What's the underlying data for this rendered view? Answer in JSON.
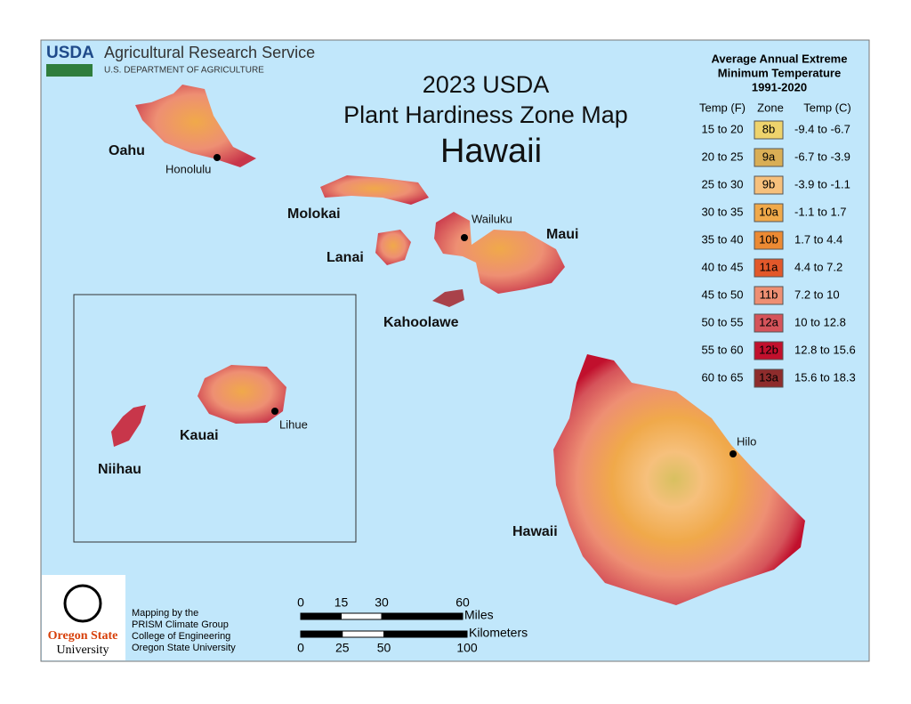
{
  "header": {
    "logo": "USDA",
    "agency": "Agricultural Research Service",
    "department": "U.S. DEPARTMENT OF AGRICULTURE"
  },
  "title": {
    "line1": "2023 USDA",
    "line2": "Plant Hardiness Zone Map",
    "line3": "Hawaii"
  },
  "legend": {
    "title": [
      "Average Annual Extreme",
      "Minimum Temperature",
      "1991-2020"
    ],
    "headers": [
      "Temp (F)",
      "Zone",
      "Temp (C)"
    ],
    "rows": [
      {
        "temp_f": "15 to 20",
        "zone": "8b",
        "temp_c": "-9.4 to -6.7",
        "color": "#eed36c"
      },
      {
        "temp_f": "20 to 25",
        "zone": "9a",
        "temp_c": "-6.7 to -3.9",
        "color": "#d9ae55"
      },
      {
        "temp_f": "25 to 30",
        "zone": "9b",
        "temp_c": "-3.9 to -1.1",
        "color": "#f6c07c"
      },
      {
        "temp_f": "30 to 35",
        "zone": "10a",
        "temp_c": "-1.1 to 1.7",
        "color": "#f0a94a"
      },
      {
        "temp_f": "35 to 40",
        "zone": "10b",
        "temp_c": "1.7 to 4.4",
        "color": "#ec8a33"
      },
      {
        "temp_f": "40 to 45",
        "zone": "11a",
        "temp_c": "4.4 to 7.2",
        "color": "#e2582a"
      },
      {
        "temp_f": "45 to 50",
        "zone": "11b",
        "temp_c": "7.2 to 10",
        "color": "#ee8f73"
      },
      {
        "temp_f": "50 to 55",
        "zone": "12a",
        "temp_c": "10 to 12.8",
        "color": "#d5535a"
      },
      {
        "temp_f": "55 to 60",
        "zone": "12b",
        "temp_c": "12.8 to 15.6",
        "color": "#c1102d"
      },
      {
        "temp_f": "60 to 65",
        "zone": "13a",
        "temp_c": "15.6 to 18.3",
        "color": "#8e2c2c"
      }
    ]
  },
  "islands": {
    "oahu": "Oahu",
    "molokai": "Molokai",
    "lanai": "Lanai",
    "maui": "Maui",
    "kahoolawe": "Kahoolawe",
    "kauai": "Kauai",
    "niihau": "Niihau",
    "hawaii": "Hawaii"
  },
  "cities": {
    "honolulu": "Honolulu",
    "wailuku": "Wailuku",
    "lihue": "Lihue",
    "hilo": "Hilo"
  },
  "credits": [
    "Mapping by the",
    "PRISM Climate Group",
    "College of Engineering",
    "Oregon State University"
  ],
  "osu_logo": [
    "Oregon State",
    "University"
  ],
  "scale": {
    "miles": {
      "label": "Miles",
      "ticks": [
        0,
        15,
        30,
        60
      ]
    },
    "kilometers": {
      "label": "Kilometers",
      "ticks": [
        0,
        25,
        50,
        100
      ]
    }
  }
}
